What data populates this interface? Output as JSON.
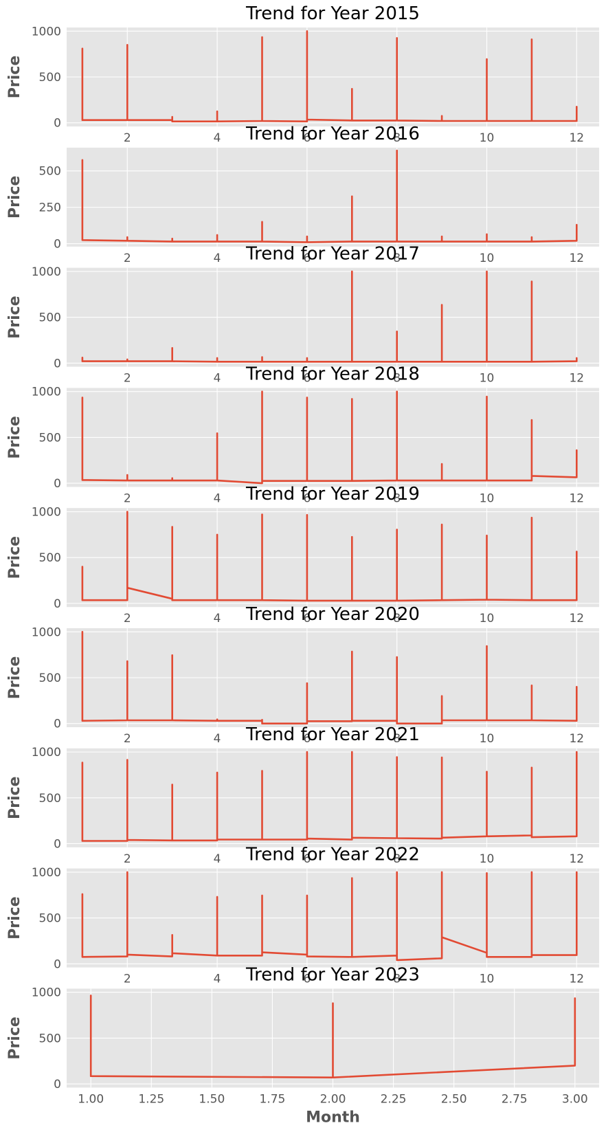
{
  "chart_data": [
    {
      "type": "line",
      "title": "Trend for Year 2015",
      "ylabel": "Price",
      "xlabel": "",
      "ylim": [
        -40,
        1040
      ],
      "xlim": [
        0.65,
        12.5
      ],
      "xticks": [
        2,
        4,
        6,
        8,
        10,
        12
      ],
      "xtick_labels": [
        "2",
        "4",
        "6",
        "8",
        "10",
        "12"
      ],
      "yticks": [
        0,
        500,
        1000
      ],
      "ytick_labels": [
        "0",
        "500",
        "1000"
      ],
      "grid": true,
      "points": [
        [
          1,
          30
        ],
        [
          1,
          810
        ],
        [
          1,
          30
        ],
        [
          2,
          30
        ],
        [
          2,
          850
        ],
        [
          2,
          30
        ],
        [
          3,
          30
        ],
        [
          3,
          65
        ],
        [
          3,
          15
        ],
        [
          4,
          15
        ],
        [
          4,
          125
        ],
        [
          4,
          15
        ],
        [
          5,
          20
        ],
        [
          5,
          935
        ],
        [
          5,
          20
        ],
        [
          6,
          15
        ],
        [
          6,
          1000
        ],
        [
          6,
          35
        ],
        [
          7,
          25
        ],
        [
          7,
          370
        ],
        [
          7,
          25
        ],
        [
          8,
          25
        ],
        [
          8,
          925
        ],
        [
          8,
          25
        ],
        [
          9,
          20
        ],
        [
          9,
          75
        ],
        [
          9,
          20
        ],
        [
          10,
          20
        ],
        [
          10,
          695
        ],
        [
          10,
          20
        ],
        [
          11,
          20
        ],
        [
          11,
          910
        ],
        [
          11,
          20
        ],
        [
          12,
          20
        ],
        [
          12,
          175
        ],
        [
          12,
          20
        ]
      ]
    },
    {
      "type": "line",
      "title": "Trend for Year 2016",
      "ylabel": "Price",
      "xlabel": "",
      "ylim": [
        -20,
        660
      ],
      "xlim": [
        0.65,
        12.5
      ],
      "xticks": [
        2,
        4,
        6,
        8,
        10,
        12
      ],
      "xtick_labels": [
        "2",
        "4",
        "6",
        "8",
        "10",
        "12"
      ],
      "yticks": [
        0,
        250,
        500
      ],
      "ytick_labels": [
        "0",
        "250",
        "500"
      ],
      "grid": true,
      "points": [
        [
          1,
          25
        ],
        [
          1,
          575
        ],
        [
          1,
          25
        ],
        [
          2,
          20
        ],
        [
          2,
          45
        ],
        [
          2,
          20
        ],
        [
          3,
          15
        ],
        [
          3,
          35
        ],
        [
          3,
          15
        ],
        [
          4,
          15
        ],
        [
          4,
          60
        ],
        [
          4,
          15
        ],
        [
          5,
          15
        ],
        [
          5,
          150
        ],
        [
          5,
          15
        ],
        [
          6,
          10
        ],
        [
          6,
          50
        ],
        [
          6,
          10
        ],
        [
          7,
          15
        ],
        [
          7,
          325
        ],
        [
          7,
          15
        ],
        [
          8,
          15
        ],
        [
          8,
          640
        ],
        [
          8,
          15
        ],
        [
          9,
          15
        ],
        [
          9,
          50
        ],
        [
          9,
          15
        ],
        [
          10,
          15
        ],
        [
          10,
          65
        ],
        [
          10,
          15
        ],
        [
          11,
          15
        ],
        [
          11,
          45
        ],
        [
          11,
          15
        ],
        [
          12,
          20
        ],
        [
          12,
          130
        ],
        [
          12,
          20
        ]
      ]
    },
    {
      "type": "line",
      "title": "Trend for Year 2017",
      "ylabel": "Price",
      "xlabel": "",
      "ylim": [
        -40,
        1040
      ],
      "xlim": [
        0.65,
        12.5
      ],
      "xticks": [
        2,
        4,
        6,
        8,
        10,
        12
      ],
      "xtick_labels": [
        "2",
        "4",
        "6",
        "8",
        "10",
        "12"
      ],
      "yticks": [
        0,
        500,
        1000
      ],
      "ytick_labels": [
        "0",
        "500",
        "1000"
      ],
      "grid": true,
      "points": [
        [
          1,
          20
        ],
        [
          1,
          60
        ],
        [
          1,
          20
        ],
        [
          2,
          20
        ],
        [
          2,
          40
        ],
        [
          2,
          20
        ],
        [
          3,
          20
        ],
        [
          3,
          165
        ],
        [
          3,
          20
        ],
        [
          4,
          15
        ],
        [
          4,
          55
        ],
        [
          4,
          15
        ],
        [
          5,
          15
        ],
        [
          5,
          65
        ],
        [
          5,
          15
        ],
        [
          6,
          15
        ],
        [
          6,
          55
        ],
        [
          6,
          15
        ],
        [
          7,
          15
        ],
        [
          7,
          1000
        ],
        [
          7,
          15
        ],
        [
          8,
          15
        ],
        [
          8,
          345
        ],
        [
          8,
          15
        ],
        [
          9,
          15
        ],
        [
          9,
          635
        ],
        [
          9,
          15
        ],
        [
          10,
          15
        ],
        [
          10,
          1000
        ],
        [
          10,
          15
        ],
        [
          11,
          15
        ],
        [
          11,
          890
        ],
        [
          11,
          15
        ],
        [
          12,
          20
        ],
        [
          12,
          55
        ],
        [
          12,
          20
        ]
      ]
    },
    {
      "type": "line",
      "title": "Trend for Year 2018",
      "ylabel": "Price",
      "xlabel": "",
      "ylim": [
        -40,
        1040
      ],
      "xlim": [
        0.65,
        12.5
      ],
      "xticks": [
        2,
        4,
        6,
        8,
        10,
        12
      ],
      "xtick_labels": [
        "2",
        "4",
        "6",
        "8",
        "10",
        "12"
      ],
      "yticks": [
        0,
        500,
        1000
      ],
      "ytick_labels": [
        "0",
        "500",
        "1000"
      ],
      "grid": true,
      "points": [
        [
          1,
          35
        ],
        [
          1,
          935
        ],
        [
          1,
          35
        ],
        [
          2,
          30
        ],
        [
          2,
          90
        ],
        [
          2,
          30
        ],
        [
          3,
          30
        ],
        [
          3,
          55
        ],
        [
          3,
          30
        ],
        [
          4,
          30
        ],
        [
          4,
          545
        ],
        [
          4,
          30
        ],
        [
          5,
          0
        ],
        [
          5,
          1000
        ],
        [
          5,
          25
        ],
        [
          6,
          25
        ],
        [
          6,
          935
        ],
        [
          6,
          25
        ],
        [
          7,
          25
        ],
        [
          7,
          920
        ],
        [
          7,
          25
        ],
        [
          8,
          30
        ],
        [
          8,
          1000
        ],
        [
          8,
          30
        ],
        [
          9,
          30
        ],
        [
          9,
          210
        ],
        [
          9,
          30
        ],
        [
          10,
          30
        ],
        [
          10,
          945
        ],
        [
          10,
          30
        ],
        [
          11,
          30
        ],
        [
          11,
          690
        ],
        [
          11,
          80
        ],
        [
          12,
          65
        ],
        [
          12,
          360
        ],
        [
          12,
          65
        ]
      ]
    },
    {
      "type": "line",
      "title": "Trend for Year 2019",
      "ylabel": "Price",
      "xlabel": "",
      "ylim": [
        -40,
        1040
      ],
      "xlim": [
        0.65,
        12.5
      ],
      "xticks": [
        2,
        4,
        6,
        8,
        10,
        12
      ],
      "xtick_labels": [
        "2",
        "4",
        "6",
        "8",
        "10",
        "12"
      ],
      "yticks": [
        0,
        500,
        1000
      ],
      "ytick_labels": [
        "0",
        "500",
        "1000"
      ],
      "grid": true,
      "points": [
        [
          1,
          35
        ],
        [
          1,
          400
        ],
        [
          1,
          35
        ],
        [
          2,
          35
        ],
        [
          2,
          1000
        ],
        [
          2,
          170
        ],
        [
          3,
          50
        ],
        [
          3,
          835
        ],
        [
          3,
          35
        ],
        [
          4,
          35
        ],
        [
          4,
          750
        ],
        [
          4,
          35
        ],
        [
          5,
          35
        ],
        [
          5,
          970
        ],
        [
          5,
          35
        ],
        [
          6,
          30
        ],
        [
          6,
          965
        ],
        [
          6,
          30
        ],
        [
          7,
          30
        ],
        [
          7,
          725
        ],
        [
          7,
          30
        ],
        [
          8,
          30
        ],
        [
          8,
          805
        ],
        [
          8,
          30
        ],
        [
          9,
          35
        ],
        [
          9,
          860
        ],
        [
          9,
          35
        ],
        [
          10,
          40
        ],
        [
          10,
          740
        ],
        [
          10,
          40
        ],
        [
          11,
          35
        ],
        [
          11,
          935
        ],
        [
          11,
          35
        ],
        [
          12,
          35
        ],
        [
          12,
          565
        ],
        [
          12,
          35
        ]
      ]
    },
    {
      "type": "line",
      "title": "Trend for Year 2020",
      "ylabel": "Price",
      "xlabel": "",
      "ylim": [
        -40,
        1040
      ],
      "xlim": [
        0.65,
        12.5
      ],
      "xticks": [
        2,
        4,
        6,
        8,
        10,
        12
      ],
      "xtick_labels": [
        "2",
        "4",
        "6",
        "8",
        "10",
        "12"
      ],
      "yticks": [
        0,
        500,
        1000
      ],
      "ytick_labels": [
        "0",
        "500",
        "1000"
      ],
      "grid": true,
      "points": [
        [
          1,
          30
        ],
        [
          1,
          1000
        ],
        [
          1,
          30
        ],
        [
          2,
          35
        ],
        [
          2,
          680
        ],
        [
          2,
          35
        ],
        [
          3,
          35
        ],
        [
          3,
          745
        ],
        [
          3,
          35
        ],
        [
          4,
          30
        ],
        [
          4,
          45
        ],
        [
          4,
          30
        ],
        [
          5,
          30
        ],
        [
          5,
          40
        ],
        [
          5,
          0
        ],
        [
          6,
          0
        ],
        [
          6,
          440
        ],
        [
          6,
          25
        ],
        [
          7,
          25
        ],
        [
          7,
          785
        ],
        [
          7,
          30
        ],
        [
          8,
          30
        ],
        [
          8,
          725
        ],
        [
          8,
          0
        ],
        [
          9,
          0
        ],
        [
          9,
          300
        ],
        [
          9,
          35
        ],
        [
          10,
          35
        ],
        [
          10,
          845
        ],
        [
          10,
          35
        ],
        [
          11,
          35
        ],
        [
          11,
          415
        ],
        [
          11,
          35
        ],
        [
          12,
          30
        ],
        [
          12,
          400
        ],
        [
          12,
          30
        ]
      ]
    },
    {
      "type": "line",
      "title": "Trend for Year 2021",
      "ylabel": "Price",
      "xlabel": "",
      "ylim": [
        -40,
        1040
      ],
      "xlim": [
        0.65,
        12.5
      ],
      "xticks": [
        2,
        4,
        6,
        8,
        10,
        12
      ],
      "xtick_labels": [
        "2",
        "4",
        "6",
        "8",
        "10",
        "12"
      ],
      "yticks": [
        0,
        500,
        1000
      ],
      "ytick_labels": [
        "0",
        "500",
        "1000"
      ],
      "grid": true,
      "points": [
        [
          1,
          30
        ],
        [
          1,
          885
        ],
        [
          1,
          30
        ],
        [
          2,
          30
        ],
        [
          2,
          915
        ],
        [
          2,
          40
        ],
        [
          3,
          35
        ],
        [
          3,
          645
        ],
        [
          3,
          35
        ],
        [
          4,
          35
        ],
        [
          4,
          775
        ],
        [
          4,
          45
        ],
        [
          5,
          45
        ],
        [
          5,
          795
        ],
        [
          5,
          45
        ],
        [
          6,
          45
        ],
        [
          6,
          1000
        ],
        [
          6,
          55
        ],
        [
          7,
          45
        ],
        [
          7,
          1000
        ],
        [
          7,
          65
        ],
        [
          8,
          60
        ],
        [
          8,
          945
        ],
        [
          8,
          60
        ],
        [
          9,
          55
        ],
        [
          9,
          940
        ],
        [
          9,
          65
        ],
        [
          10,
          80
        ],
        [
          10,
          785
        ],
        [
          10,
          80
        ],
        [
          11,
          90
        ],
        [
          11,
          830
        ],
        [
          11,
          70
        ],
        [
          12,
          80
        ],
        [
          12,
          1000
        ],
        [
          12,
          80
        ]
      ]
    },
    {
      "type": "line",
      "title": "Trend for Year 2022",
      "ylabel": "Price",
      "xlabel": "",
      "ylim": [
        -40,
        1040
      ],
      "xlim": [
        0.65,
        12.5
      ],
      "xticks": [
        2,
        4,
        6,
        8,
        10,
        12
      ],
      "xtick_labels": [
        "2",
        "4",
        "6",
        "8",
        "10",
        "12"
      ],
      "yticks": [
        0,
        500,
        1000
      ],
      "ytick_labels": [
        "0",
        "500",
        "1000"
      ],
      "grid": true,
      "points": [
        [
          1,
          75
        ],
        [
          1,
          760
        ],
        [
          1,
          75
        ],
        [
          2,
          80
        ],
        [
          2,
          1000
        ],
        [
          2,
          100
        ],
        [
          3,
          80
        ],
        [
          3,
          315
        ],
        [
          3,
          115
        ],
        [
          4,
          90
        ],
        [
          4,
          730
        ],
        [
          4,
          90
        ],
        [
          5,
          90
        ],
        [
          5,
          745
        ],
        [
          5,
          125
        ],
        [
          6,
          100
        ],
        [
          6,
          745
        ],
        [
          6,
          80
        ],
        [
          7,
          75
        ],
        [
          7,
          935
        ],
        [
          7,
          75
        ],
        [
          8,
          90
        ],
        [
          8,
          1000
        ],
        [
          8,
          40
        ],
        [
          9,
          60
        ],
        [
          9,
          1000
        ],
        [
          9,
          290
        ],
        [
          10,
          120
        ],
        [
          10,
          990
        ],
        [
          10,
          75
        ],
        [
          11,
          75
        ],
        [
          11,
          1000
        ],
        [
          11,
          95
        ],
        [
          12,
          95
        ],
        [
          12,
          1000
        ],
        [
          12,
          95
        ]
      ]
    },
    {
      "type": "line",
      "title": "Trend for Year 2023",
      "ylabel": "Price",
      "xlabel": "Month",
      "ylim": [
        -40,
        1040
      ],
      "xlim": [
        0.9,
        3.1
      ],
      "xticks": [
        1.0,
        1.25,
        1.5,
        1.75,
        2.0,
        2.25,
        2.5,
        2.75,
        3.0
      ],
      "xtick_labels": [
        "1.00",
        "1.25",
        "1.50",
        "1.75",
        "2.00",
        "2.25",
        "2.50",
        "2.75",
        "3.00"
      ],
      "yticks": [
        0,
        500,
        1000
      ],
      "ytick_labels": [
        "0",
        "500",
        "1000"
      ],
      "grid": true,
      "points": [
        [
          1,
          85
        ],
        [
          1,
          965
        ],
        [
          1,
          85
        ],
        [
          2,
          70
        ],
        [
          2,
          880
        ],
        [
          2,
          70
        ],
        [
          3,
          200
        ],
        [
          3,
          935
        ],
        [
          3,
          200
        ]
      ]
    }
  ]
}
